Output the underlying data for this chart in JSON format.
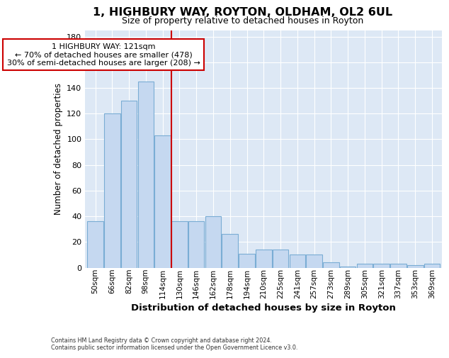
{
  "title1": "1, HIGHBURY WAY, ROYTON, OLDHAM, OL2 6UL",
  "title2": "Size of property relative to detached houses in Royton",
  "xlabel": "Distribution of detached houses by size in Royton",
  "ylabel": "Number of detached properties",
  "categories": [
    "50sqm",
    "66sqm",
    "82sqm",
    "98sqm",
    "114sqm",
    "130sqm",
    "146sqm",
    "162sqm",
    "178sqm",
    "194sqm",
    "210sqm",
    "225sqm",
    "241sqm",
    "257sqm",
    "273sqm",
    "289sqm",
    "305sqm",
    "321sqm",
    "337sqm",
    "353sqm",
    "369sqm"
  ],
  "values": [
    36,
    120,
    130,
    145,
    103,
    36,
    36,
    40,
    26,
    11,
    14,
    14,
    10,
    10,
    4,
    1,
    3,
    3,
    3,
    2,
    3
  ],
  "bar_color": "#c5d8f0",
  "bar_edge_color": "#7aadd4",
  "vline_x": 4.5,
  "vline_color": "#cc0000",
  "annotation_text": "1 HIGHBURY WAY: 121sqm\n← 70% of detached houses are smaller (478)\n30% of semi-detached houses are larger (208) →",
  "annotation_box_color": "#ffffff",
  "annotation_box_edge": "#cc0000",
  "ylim": [
    0,
    185
  ],
  "yticks": [
    0,
    20,
    40,
    60,
    80,
    100,
    120,
    140,
    160,
    180
  ],
  "footer": "Contains HM Land Registry data © Crown copyright and database right 2024.\nContains public sector information licensed under the Open Government Licence v3.0.",
  "plot_bg_color": "#dde8f5",
  "fig_bg_color": "#ffffff",
  "grid_color": "#ffffff"
}
